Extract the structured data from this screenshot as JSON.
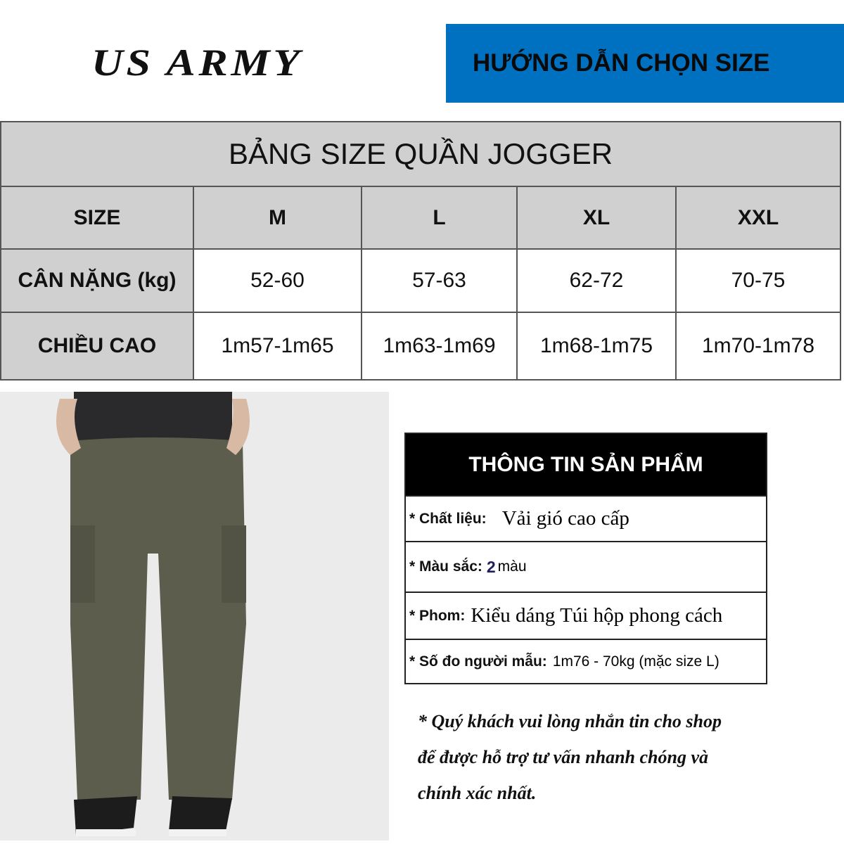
{
  "logo": "US ARMY",
  "banner": {
    "title": "HƯỚNG DẪN CHỌN SIZE",
    "color": "#0070c0"
  },
  "size_table": {
    "title": "BẢNG SIZE QUẦN JOGGER",
    "header": [
      "SIZE",
      "M",
      "L",
      "XL",
      "XXL"
    ],
    "rows": [
      [
        "CÂN NẶNG (kg)",
        "52-60",
        "57-63",
        "62-72",
        "70-75"
      ],
      [
        "CHIỀU CAO",
        "1m57-1m65",
        "1m63-1m69",
        "1m68-1m75",
        "1m70-1m78"
      ]
    ]
  },
  "product_info": {
    "title": "THÔNG TIN SẢN PHẨM",
    "items": [
      {
        "key": "* Chất liệu:",
        "value": "Vải gió cao cấp"
      },
      {
        "key": "* Màu sắc:",
        "num": "2",
        "value": "màu"
      },
      {
        "key": "* Phom:",
        "value": "Kiểu dáng Túi hộp phong cách"
      },
      {
        "key": "* Số đo người mẫu:",
        "value": "1m76 - 70kg (mặc size L)"
      }
    ]
  },
  "note": [
    "* Quý khách vui lòng nhắn tin cho shop",
    "để được hỗ trợ tư vấn nhanh chóng và",
    "chính xác nhất."
  ]
}
